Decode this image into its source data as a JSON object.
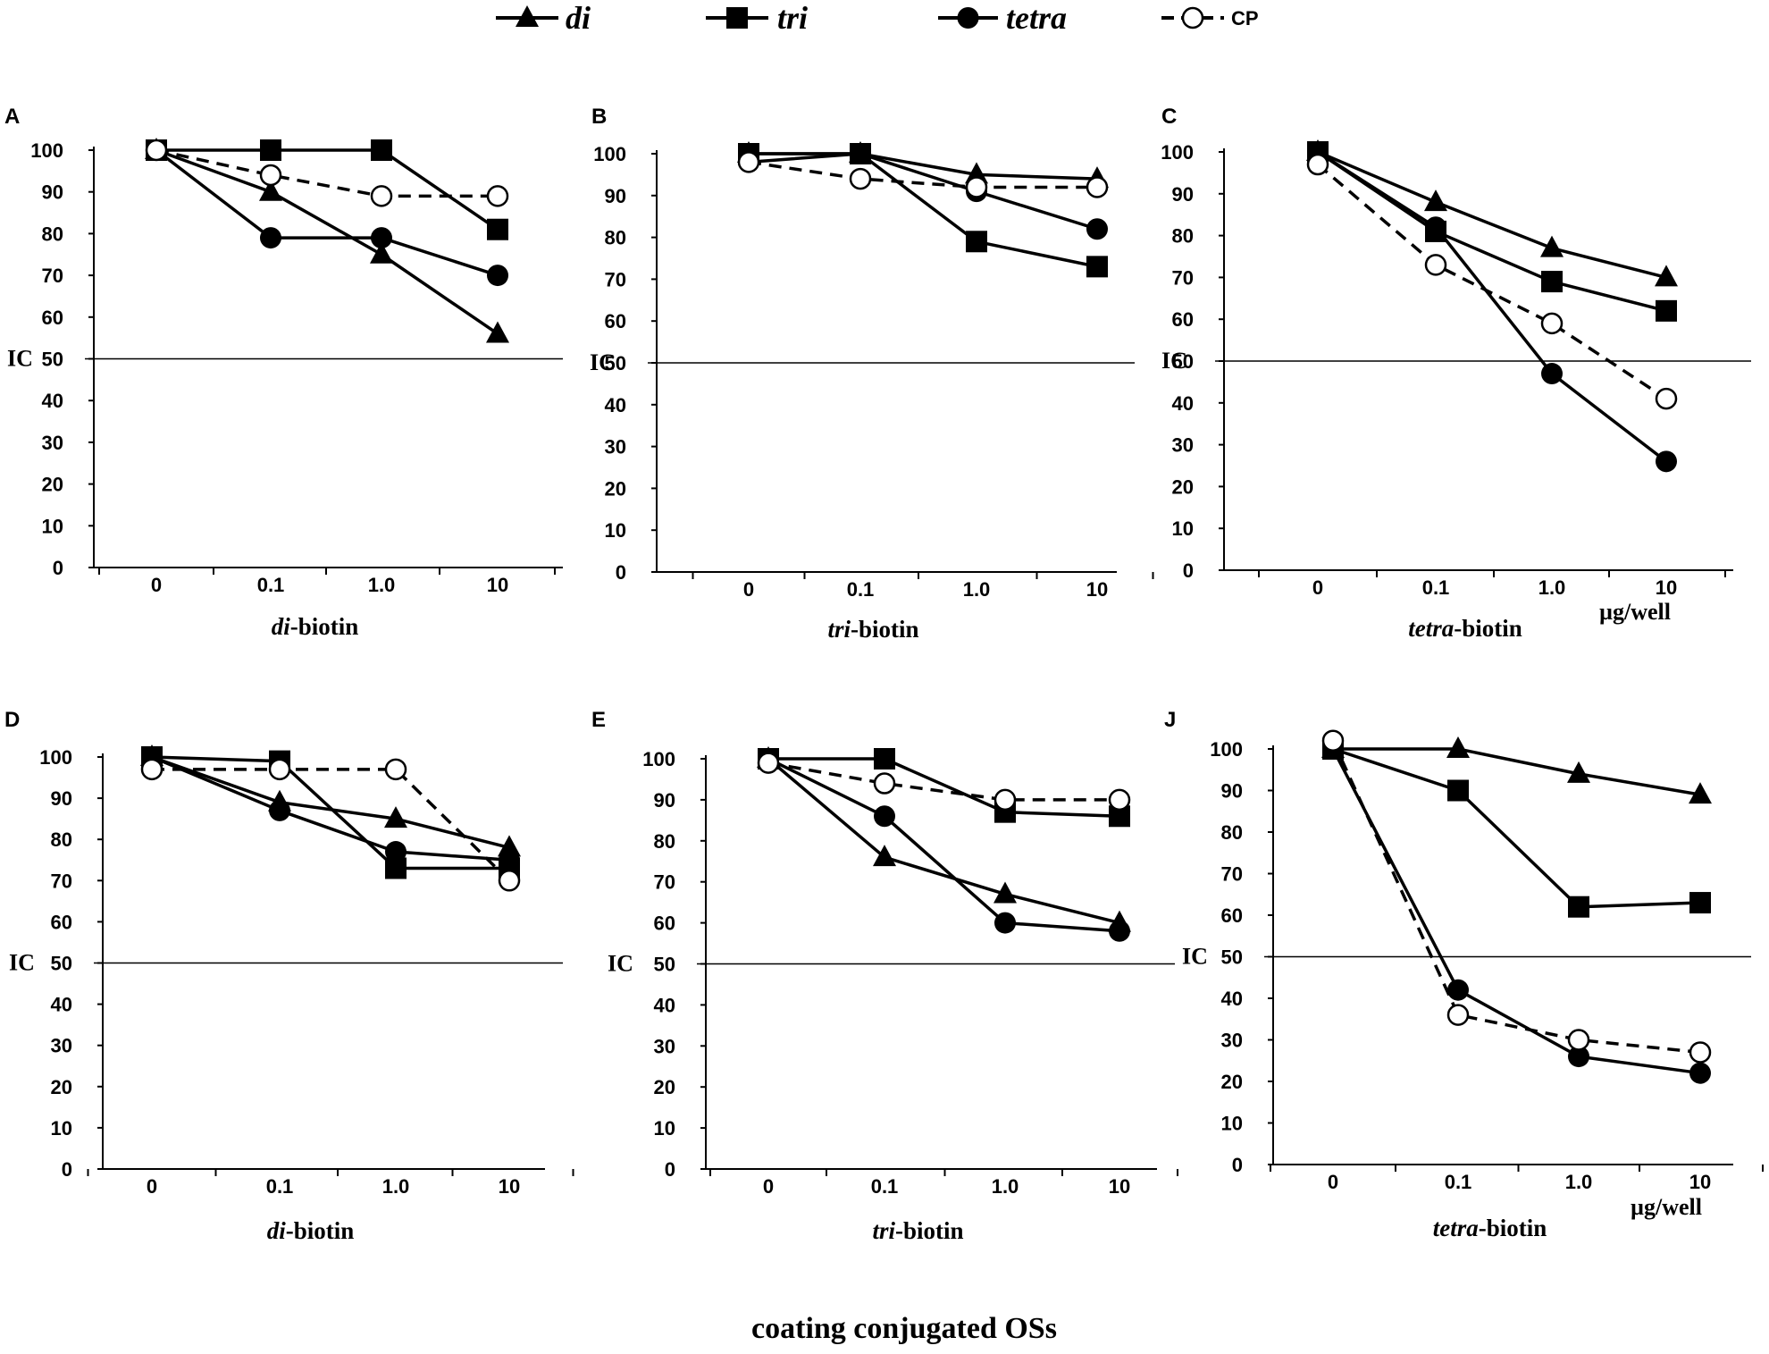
{
  "legend": {
    "series": [
      {
        "label": "di",
        "marker": "triangle",
        "dashed": false
      },
      {
        "label": "tri",
        "marker": "square",
        "dashed": false
      },
      {
        "label": "tetra",
        "marker": "circle",
        "dashed": false
      },
      {
        "label": "CP",
        "marker": "open-circle",
        "dashed": true
      }
    ]
  },
  "caption": "coating conjugated OSs",
  "chart_data": [
    {
      "panel": "A",
      "type": "line",
      "categories": [
        "0",
        "0.1",
        "1.0",
        "10"
      ],
      "xlabel_italic": "di",
      "xlabel_rest": "-biotin",
      "ylim": [
        0,
        100
      ],
      "yticks": [
        "0",
        "10",
        "20",
        "30",
        "40",
        "50",
        "60",
        "70",
        "80",
        "90",
        "100"
      ],
      "reference_line": {
        "value": 50,
        "label": "IC"
      },
      "series": [
        {
          "name": "di",
          "values": [
            100,
            90,
            75,
            56
          ]
        },
        {
          "name": "tri",
          "values": [
            100,
            100,
            100,
            81
          ]
        },
        {
          "name": "tetra",
          "values": [
            100,
            79,
            79,
            70
          ]
        },
        {
          "name": "CP",
          "values": [
            100,
            94,
            89,
            89
          ]
        }
      ]
    },
    {
      "panel": "B",
      "type": "line",
      "categories": [
        "0",
        "0.1",
        "1.0",
        "10"
      ],
      "xlabel_italic": "tri",
      "xlabel_rest": "-biotin",
      "ylim": [
        0,
        100
      ],
      "yticks": [
        "0",
        "10",
        "20",
        "30",
        "40",
        "50",
        "60",
        "70",
        "80",
        "90",
        "100"
      ],
      "reference_line": {
        "value": 50,
        "label": "IC"
      },
      "series": [
        {
          "name": "di",
          "values": [
            100,
            100,
            95,
            94
          ]
        },
        {
          "name": "tri",
          "values": [
            100,
            100,
            79,
            73
          ]
        },
        {
          "name": "tetra",
          "values": [
            98,
            100,
            91,
            82
          ]
        },
        {
          "name": "CP",
          "values": [
            98,
            94,
            92,
            92
          ]
        }
      ]
    },
    {
      "panel": "C",
      "type": "line",
      "categories": [
        "0",
        "0.1",
        "1.0",
        "10"
      ],
      "xlabel_italic": "tetra",
      "xlabel_rest": "-biotin",
      "unit": "µg/well",
      "ylim": [
        0,
        100
      ],
      "yticks": [
        "0",
        "10",
        "20",
        "30",
        "40",
        "50",
        "60",
        "70",
        "80",
        "90",
        "100"
      ],
      "reference_line": {
        "value": 50,
        "label": "IC"
      },
      "series": [
        {
          "name": "di",
          "values": [
            100,
            88,
            77,
            70
          ]
        },
        {
          "name": "tri",
          "values": [
            100,
            81,
            69,
            62
          ]
        },
        {
          "name": "tetra",
          "values": [
            100,
            82,
            47,
            26
          ]
        },
        {
          "name": "CP",
          "values": [
            97,
            73,
            59,
            41
          ]
        }
      ]
    },
    {
      "panel": "D",
      "type": "line",
      "categories": [
        "0",
        "0.1",
        "1.0",
        "10"
      ],
      "xlabel_italic": "di",
      "xlabel_rest": "-biotin",
      "ylim": [
        0,
        100
      ],
      "yticks": [
        "0",
        "10",
        "20",
        "30",
        "40",
        "50",
        "60",
        "70",
        "80",
        "90",
        "100"
      ],
      "reference_line": {
        "value": 50,
        "label": "IC"
      },
      "series": [
        {
          "name": "di",
          "values": [
            100,
            89,
            85,
            78
          ]
        },
        {
          "name": "tri",
          "values": [
            100,
            99,
            73,
            73
          ]
        },
        {
          "name": "tetra",
          "values": [
            100,
            87,
            77,
            75
          ]
        },
        {
          "name": "CP",
          "values": [
            97,
            97,
            97,
            70
          ]
        }
      ]
    },
    {
      "panel": "E",
      "type": "line",
      "categories": [
        "0",
        "0.1",
        "1.0",
        "10"
      ],
      "xlabel_italic": "tri",
      "xlabel_rest": "-biotin",
      "ylim": [
        0,
        100
      ],
      "yticks": [
        "0",
        "10",
        "20",
        "30",
        "40",
        "50",
        "60",
        "70",
        "80",
        "90",
        "100"
      ],
      "reference_line": {
        "value": 50,
        "label": "IC"
      },
      "series": [
        {
          "name": "di",
          "values": [
            100,
            76,
            67,
            60
          ]
        },
        {
          "name": "tri",
          "values": [
            100,
            100,
            87,
            86
          ]
        },
        {
          "name": "tetra",
          "values": [
            100,
            86,
            60,
            58
          ]
        },
        {
          "name": "CP",
          "values": [
            99,
            94,
            90,
            90
          ]
        }
      ]
    },
    {
      "panel": "J",
      "type": "line",
      "categories": [
        "0",
        "0.1",
        "1.0",
        "10"
      ],
      "xlabel_italic": "tetra",
      "xlabel_rest": "-biotin",
      "unit": "µg/well",
      "ylim": [
        0,
        100
      ],
      "yticks": [
        "0",
        "10",
        "20",
        "30",
        "40",
        "50",
        "60",
        "70",
        "80",
        "90",
        "100"
      ],
      "reference_line": {
        "value": 50,
        "label": "IC"
      },
      "series": [
        {
          "name": "di",
          "values": [
            100,
            100,
            94,
            89
          ]
        },
        {
          "name": "tri",
          "values": [
            100,
            90,
            62,
            63
          ]
        },
        {
          "name": "tetra",
          "values": [
            100,
            42,
            26,
            22
          ]
        },
        {
          "name": "CP",
          "values": [
            102,
            36,
            30,
            27
          ]
        }
      ]
    }
  ]
}
